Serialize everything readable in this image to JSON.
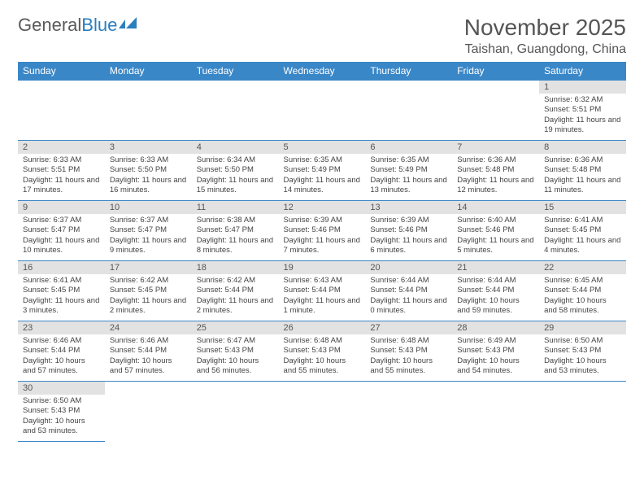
{
  "logo": {
    "text1": "General",
    "text2": "Blue"
  },
  "title": "November 2025",
  "location": "Taishan, Guangdong, China",
  "colors": {
    "header_bg": "#3a87c8",
    "header_text": "#ffffff",
    "daynum_bg": "#e2e2e2",
    "border": "#3a87c8",
    "logo_gray": "#5a5a5a",
    "logo_blue": "#2a7fbf"
  },
  "weekdays": [
    "Sunday",
    "Monday",
    "Tuesday",
    "Wednesday",
    "Thursday",
    "Friday",
    "Saturday"
  ],
  "days": {
    "1": {
      "sunrise": "6:32 AM",
      "sunset": "5:51 PM",
      "daylight": "11 hours and 19 minutes."
    },
    "2": {
      "sunrise": "6:33 AM",
      "sunset": "5:51 PM",
      "daylight": "11 hours and 17 minutes."
    },
    "3": {
      "sunrise": "6:33 AM",
      "sunset": "5:50 PM",
      "daylight": "11 hours and 16 minutes."
    },
    "4": {
      "sunrise": "6:34 AM",
      "sunset": "5:50 PM",
      "daylight": "11 hours and 15 minutes."
    },
    "5": {
      "sunrise": "6:35 AM",
      "sunset": "5:49 PM",
      "daylight": "11 hours and 14 minutes."
    },
    "6": {
      "sunrise": "6:35 AM",
      "sunset": "5:49 PM",
      "daylight": "11 hours and 13 minutes."
    },
    "7": {
      "sunrise": "6:36 AM",
      "sunset": "5:48 PM",
      "daylight": "11 hours and 12 minutes."
    },
    "8": {
      "sunrise": "6:36 AM",
      "sunset": "5:48 PM",
      "daylight": "11 hours and 11 minutes."
    },
    "9": {
      "sunrise": "6:37 AM",
      "sunset": "5:47 PM",
      "daylight": "11 hours and 10 minutes."
    },
    "10": {
      "sunrise": "6:37 AM",
      "sunset": "5:47 PM",
      "daylight": "11 hours and 9 minutes."
    },
    "11": {
      "sunrise": "6:38 AM",
      "sunset": "5:47 PM",
      "daylight": "11 hours and 8 minutes."
    },
    "12": {
      "sunrise": "6:39 AM",
      "sunset": "5:46 PM",
      "daylight": "11 hours and 7 minutes."
    },
    "13": {
      "sunrise": "6:39 AM",
      "sunset": "5:46 PM",
      "daylight": "11 hours and 6 minutes."
    },
    "14": {
      "sunrise": "6:40 AM",
      "sunset": "5:46 PM",
      "daylight": "11 hours and 5 minutes."
    },
    "15": {
      "sunrise": "6:41 AM",
      "sunset": "5:45 PM",
      "daylight": "11 hours and 4 minutes."
    },
    "16": {
      "sunrise": "6:41 AM",
      "sunset": "5:45 PM",
      "daylight": "11 hours and 3 minutes."
    },
    "17": {
      "sunrise": "6:42 AM",
      "sunset": "5:45 PM",
      "daylight": "11 hours and 2 minutes."
    },
    "18": {
      "sunrise": "6:42 AM",
      "sunset": "5:44 PM",
      "daylight": "11 hours and 2 minutes."
    },
    "19": {
      "sunrise": "6:43 AM",
      "sunset": "5:44 PM",
      "daylight": "11 hours and 1 minute."
    },
    "20": {
      "sunrise": "6:44 AM",
      "sunset": "5:44 PM",
      "daylight": "11 hours and 0 minutes."
    },
    "21": {
      "sunrise": "6:44 AM",
      "sunset": "5:44 PM",
      "daylight": "10 hours and 59 minutes."
    },
    "22": {
      "sunrise": "6:45 AM",
      "sunset": "5:44 PM",
      "daylight": "10 hours and 58 minutes."
    },
    "23": {
      "sunrise": "6:46 AM",
      "sunset": "5:44 PM",
      "daylight": "10 hours and 57 minutes."
    },
    "24": {
      "sunrise": "6:46 AM",
      "sunset": "5:44 PM",
      "daylight": "10 hours and 57 minutes."
    },
    "25": {
      "sunrise": "6:47 AM",
      "sunset": "5:43 PM",
      "daylight": "10 hours and 56 minutes."
    },
    "26": {
      "sunrise": "6:48 AM",
      "sunset": "5:43 PM",
      "daylight": "10 hours and 55 minutes."
    },
    "27": {
      "sunrise": "6:48 AM",
      "sunset": "5:43 PM",
      "daylight": "10 hours and 55 minutes."
    },
    "28": {
      "sunrise": "6:49 AM",
      "sunset": "5:43 PM",
      "daylight": "10 hours and 54 minutes."
    },
    "29": {
      "sunrise": "6:50 AM",
      "sunset": "5:43 PM",
      "daylight": "10 hours and 53 minutes."
    },
    "30": {
      "sunrise": "6:50 AM",
      "sunset": "5:43 PM",
      "daylight": "10 hours and 53 minutes."
    }
  },
  "grid": [
    [
      null,
      null,
      null,
      null,
      null,
      null,
      "1"
    ],
    [
      "2",
      "3",
      "4",
      "5",
      "6",
      "7",
      "8"
    ],
    [
      "9",
      "10",
      "11",
      "12",
      "13",
      "14",
      "15"
    ],
    [
      "16",
      "17",
      "18",
      "19",
      "20",
      "21",
      "22"
    ],
    [
      "23",
      "24",
      "25",
      "26",
      "27",
      "28",
      "29"
    ],
    [
      "30",
      null,
      null,
      null,
      null,
      null,
      null
    ]
  ],
  "labels": {
    "sunrise": "Sunrise: ",
    "sunset": "Sunset: ",
    "daylight": "Daylight: "
  }
}
